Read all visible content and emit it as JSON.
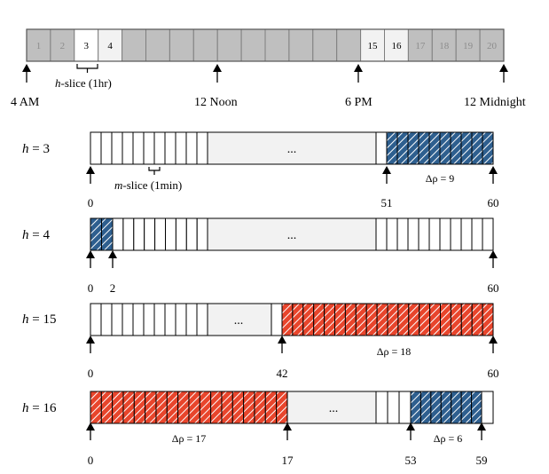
{
  "timeline": {
    "hours": [
      "1",
      "2",
      "3",
      "4",
      "",
      "",
      "",
      "",
      "",
      "",
      "",
      "",
      "",
      "",
      "15",
      "16",
      "17",
      "18",
      "19",
      "20"
    ],
    "highlighted_hours": [
      "3",
      "4",
      "15",
      "16"
    ],
    "time_labels": {
      "start": "4 AM",
      "noon": "12 Noon",
      "six_pm": "6 PM",
      "midnight": "12 Midnight"
    },
    "h_slice_label": {
      "italic": "h",
      "rest": "-slice (1hr)"
    }
  },
  "rows": [
    {
      "id": "h3",
      "label": {
        "var": "h",
        "eq": " = 3"
      },
      "ellipsis": "...",
      "minute_labels": [
        "0",
        "51",
        "60"
      ],
      "delta_label": "Δρ = 9",
      "m_slice_label": {
        "italic": "m",
        "rest": "-slice (1min)"
      }
    },
    {
      "id": "h4",
      "label": {
        "var": "h",
        "eq": " = 4"
      },
      "ellipsis": "...",
      "minute_labels": [
        "0",
        "2",
        "60"
      ]
    },
    {
      "id": "h15",
      "label": {
        "var": "h",
        "eq": " = 15"
      },
      "ellipsis": "...",
      "minute_labels": [
        "0",
        "42",
        "60"
      ],
      "delta_label": "Δρ = 18"
    },
    {
      "id": "h16",
      "label": {
        "var": "h",
        "eq": " = 16"
      },
      "ellipsis": "...",
      "minute_labels": [
        "0",
        "17",
        "53",
        "59"
      ],
      "delta_labels": [
        "Δρ = 17",
        "Δρ = 6"
      ]
    }
  ],
  "colors": {
    "dark_cell": "#bfbfbf",
    "light_cell": "#f2f2f2",
    "white_cell": "#ffffff",
    "blue_hatch": "#2e5f8f",
    "red_hatch": "#e8452c"
  }
}
